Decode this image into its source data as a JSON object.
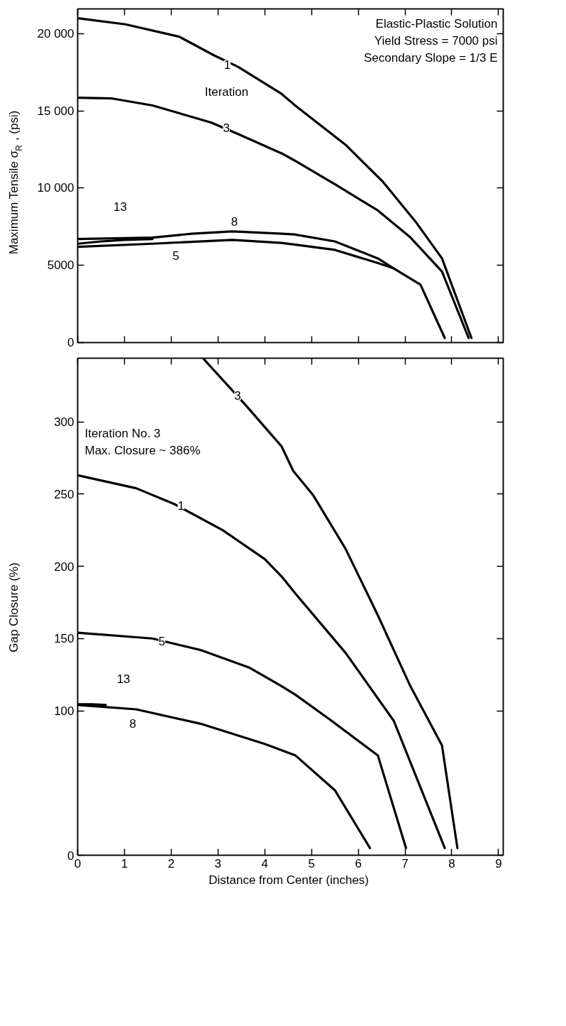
{
  "chart_data": [
    {
      "type": "line",
      "ylabel": "Maximum Tensile σ$_{R}$ , (psi)",
      "tick_labels": "y",
      "xlim": [
        0,
        9.1
      ],
      "xticks": [
        0,
        1,
        2,
        3,
        4,
        5,
        6,
        7,
        8,
        9
      ],
      "ylim": [
        0,
        21600
      ],
      "yticks": [
        0,
        5000,
        {
          "value": 10000,
          "label": "10 000"
        },
        {
          "value": 15000,
          "label": "15 000"
        },
        {
          "value": 20000,
          "label": "20 000"
        }
      ],
      "series": [
        {
          "color": "#000000",
          "x": [
            0,
            1.02,
            2.17,
            2.91,
            3.43,
            4.36,
            4.63,
            5.73,
            6.53,
            7.22,
            7.79,
            8.42
          ],
          "values": [
            21000,
            20600,
            19800,
            18600,
            17850,
            16100,
            15400,
            12800,
            10400,
            7850,
            5450,
            300
          ]
        },
        {
          "color": "#000000",
          "x": [
            0,
            0.74,
            1.6,
            2.85,
            3.43,
            4.36,
            4.63,
            5.5,
            6.42,
            7.1,
            7.79,
            8.36
          ],
          "values": [
            15850,
            15800,
            15350,
            14250,
            13500,
            12250,
            11800,
            10250,
            8550,
            6850,
            4600,
            300
          ]
        },
        {
          "color": "#000000",
          "x": [
            0,
            1.6,
            2.45,
            3.31,
            4.36,
            4.63,
            5.5,
            6.42,
            6.76
          ],
          "values": [
            6700,
            6800,
            7050,
            7200,
            7050,
            7000,
            6550,
            5450,
            4800
          ]
        },
        {
          "color": "#000000",
          "x": [
            0,
            0.5,
            1.0,
            1.6
          ],
          "values": [
            6400,
            6550,
            6650,
            6700
          ]
        },
        {
          "color": "#000000",
          "x": [
            0,
            1.6,
            3.31,
            4.36,
            4.63,
            5.5,
            6.42,
            6.76,
            7.33,
            7.85
          ],
          "values": [
            6200,
            6400,
            6650,
            6450,
            6350,
            6000,
            5150,
            4800,
            3750,
            300
          ]
        }
      ],
      "annotations": [
        "Elastic-Plastic Solution",
        "Yield Stress = 7000 psi",
        "Secondary Slope = 1/3 E",
        "Iteration",
        {
          "text": "1",
          "x": 3.2,
          "y": 18000
        },
        {
          "text": "3",
          "x": 3.18,
          "y": 13900
        },
        {
          "text": "8",
          "x": 3.35,
          "y": 7850
        },
        {
          "text": "5",
          "x": 2.1,
          "y": 5650
        },
        {
          "text": "13",
          "x": 0.91,
          "y": 8800
        }
      ]
    },
    {
      "type": "line",
      "ylabel": "Gap Closure (%)",
      "xlabel": "Distance from Center  (inches)",
      "xlim": [
        0,
        9.1
      ],
      "xticks": [
        0,
        1,
        2,
        3,
        4,
        5,
        6,
        7,
        8,
        9
      ],
      "ylim": [
        0,
        344
      ],
      "yticks": [
        0,
        100,
        150,
        200,
        250,
        300
      ],
      "series": [
        {
          "color": "#000000",
          "x": [
            2.68,
            3.58,
            4.36,
            4.61,
            5.04,
            5.73,
            6.42,
            7.1,
            7.79,
            8.12
          ],
          "values": [
            344,
            312,
            283,
            266,
            249,
            212,
            166,
            118,
            76,
            5
          ]
        },
        {
          "color": "#000000",
          "x": [
            0,
            1.25,
            2.07,
            3.1,
            4.0,
            4.36,
            4.66,
            5.73,
            6.76,
            7.85
          ],
          "values": [
            263,
            254,
            243,
            225,
            205,
            193,
            181,
            140,
            93,
            5
          ]
        },
        {
          "color": "#000000",
          "x": [
            0,
            1.6,
            2.63,
            3.66,
            4.36,
            4.66,
            5.39,
            6.42,
            7.02
          ],
          "values": [
            154,
            150,
            142,
            130,
            117,
            111,
            94,
            69,
            5
          ]
        },
        {
          "color": "#000000",
          "x": [
            0,
            1.25,
            2.63,
            4.0,
            4.66,
            5.5,
            6.25
          ],
          "values": [
            104,
            101,
            91,
            77,
            69,
            45,
            5
          ]
        },
        {
          "color": "#000000",
          "x": [
            0,
            0.3,
            0.6
          ],
          "values": [
            104.5,
            104.5,
            104
          ]
        }
      ],
      "annotations": [
        "Iteration No. 3",
        "Max. Closure ~ 386%",
        {
          "text": "3",
          "x": 3.42,
          "y": 318
        },
        {
          "text": "1",
          "x": 2.21,
          "y": 242
        },
        {
          "text": "5",
          "x": 1.8,
          "y": 148
        },
        {
          "text": "13",
          "x": 0.98,
          "y": 122
        },
        {
          "text": "8",
          "x": 1.18,
          "y": 91
        }
      ]
    }
  ]
}
